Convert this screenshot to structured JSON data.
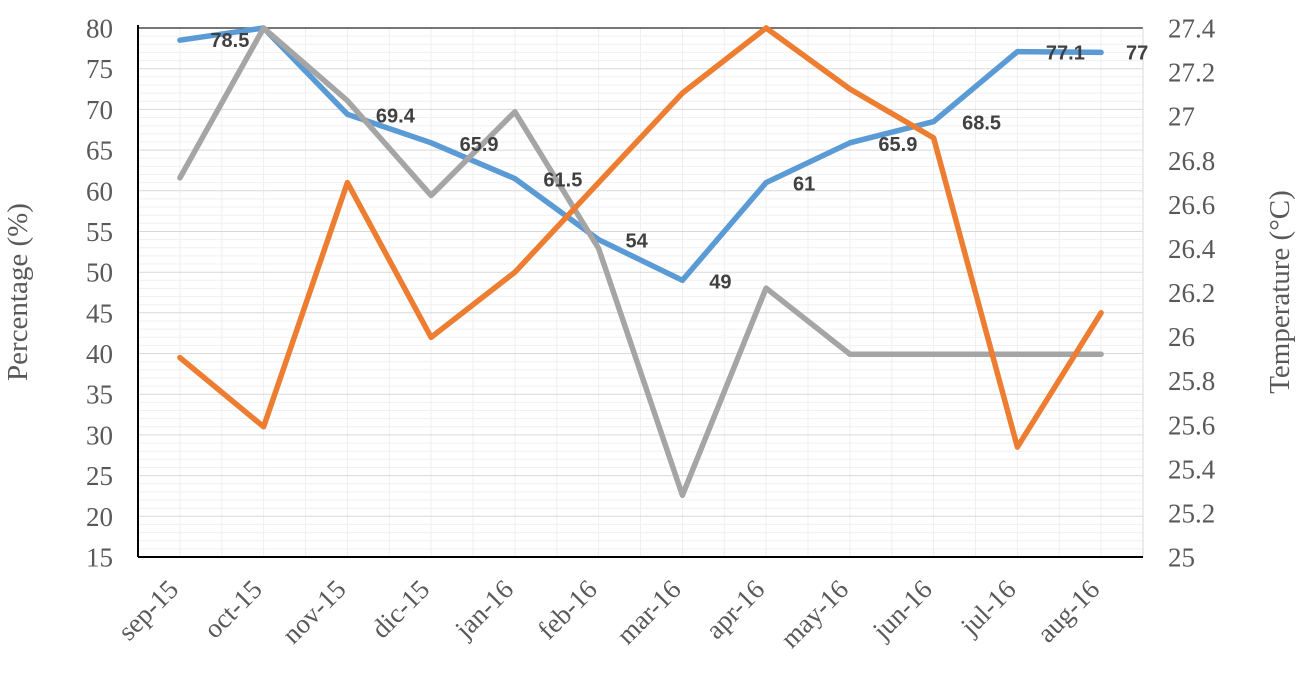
{
  "chart_data": {
    "type": "line",
    "title": "",
    "categories": [
      "sep-15",
      "oct-15",
      "nov-15",
      "dic-15",
      "jan-16",
      "feb-16",
      "mar-16",
      "apr-16",
      "may-16",
      "jun-16",
      "jul-16",
      "aug-16"
    ],
    "ylabel_left": "Percentage (%)",
    "ylabel_right": "Temperature (°C)",
    "y_left": {
      "min": 15,
      "max": 80,
      "step": 5,
      "ticks": [
        "80",
        "75",
        "70",
        "65",
        "60",
        "55",
        "50",
        "45",
        "40",
        "35",
        "30",
        "25",
        "20",
        "15"
      ]
    },
    "y_right": {
      "min": 25,
      "max": 27.4,
      "step": 0.2,
      "ticks": [
        "27.4",
        "27.2",
        "27",
        "26.8",
        "26.6",
        "26.4",
        "26.2",
        "26",
        "25.8",
        "25.6",
        "25.4",
        "25.2",
        "25"
      ]
    },
    "grid": {
      "h_minor_step": 1,
      "h_major_step": 5,
      "vertical": true
    },
    "legend": "none",
    "series": [
      {
        "name": "percentage-blue",
        "color": "#5B9BD5",
        "axis": "left",
        "values": [
          78.5,
          80,
          69.4,
          65.9,
          61.5,
          54,
          49,
          61,
          65.9,
          68.5,
          77.1,
          77
        ],
        "labels": [
          "78.5",
          null,
          "69.4",
          "65.9",
          "61.5",
          "54",
          "49",
          "61",
          "65.9",
          "68.5",
          "77.1",
          "77"
        ]
      },
      {
        "name": "temperature-gray",
        "color": "#A5A5A5",
        "axis": "right",
        "values": [
          26.72,
          27.4,
          27.07,
          26.64,
          27.02,
          26.4,
          25.28,
          26.22,
          25.92,
          25.92,
          25.92,
          25.92
        ],
        "labels": null
      },
      {
        "name": "percentage-orange",
        "color": "#ED7D31",
        "axis": "left",
        "values": [
          39.5,
          31,
          61,
          42,
          50,
          61,
          72,
          80,
          72.5,
          66.5,
          28.5,
          45
        ],
        "labels": null
      }
    ],
    "label_color": "#404040"
  }
}
